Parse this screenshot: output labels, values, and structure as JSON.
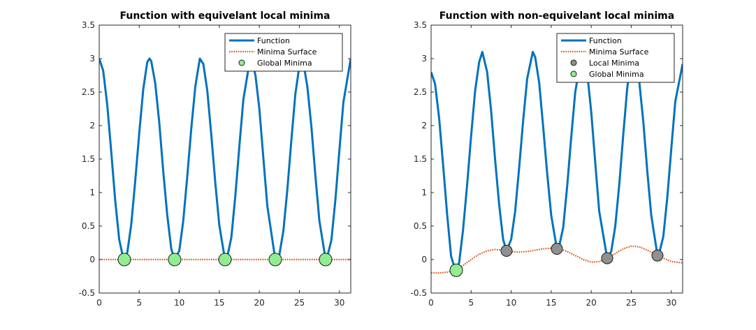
{
  "chart_data": [
    {
      "type": "line",
      "title": "Function with equivelant local minima",
      "xlabel": "",
      "ylabel": "",
      "xlim": [
        0,
        31.4159
      ],
      "ylim": [
        -0.5,
        3.5
      ],
      "xticks": [
        0,
        5,
        10,
        15,
        20,
        25,
        30
      ],
      "yticks": [
        -0.5,
        0,
        0.5,
        1,
        1.5,
        2,
        2.5,
        3,
        3.5
      ],
      "xtick_labels": [
        "0",
        "5",
        "10",
        "15",
        "20",
        "25",
        "30"
      ],
      "ytick_labels": [
        "-0.5",
        "0",
        "0.5",
        "1",
        "1.5",
        "2",
        "2.5",
        "3",
        "3.5"
      ],
      "legend_position": "top-right",
      "series": [
        {
          "name": "Function",
          "kind": "line",
          "color": "#0072BD",
          "x": [
            0,
            0.5,
            1,
            1.5,
            2,
            2.5,
            3,
            3.14,
            3.5,
            4,
            4.5,
            5,
            5.5,
            6,
            6.28,
            6.5,
            7,
            7.5,
            8,
            8.5,
            9,
            9.42,
            10,
            10.5,
            11,
            11.5,
            12,
            12.57,
            13,
            13.5,
            14,
            14.5,
            15,
            15.71,
            16,
            16.5,
            17,
            17.5,
            18,
            18.85,
            19,
            19.5,
            20,
            20.5,
            21,
            21.99,
            22.5,
            23,
            23.5,
            24,
            24.5,
            25.13,
            25.5,
            26,
            26.5,
            27,
            27.5,
            28.27,
            28.5,
            29,
            29.5,
            30,
            30.5,
            31.42
          ],
          "y": [
            3.0,
            2.82,
            2.31,
            1.61,
            0.88,
            0.3,
            0.02,
            0.0,
            0.1,
            0.52,
            1.18,
            1.89,
            2.54,
            2.95,
            3.0,
            2.96,
            2.63,
            2.05,
            1.31,
            0.66,
            0.16,
            0.0,
            0.13,
            0.58,
            1.25,
            1.96,
            2.58,
            3.0,
            2.92,
            2.52,
            1.86,
            1.14,
            0.51,
            0.0,
            0.04,
            0.33,
            0.95,
            1.68,
            2.39,
            3.0,
            2.98,
            2.76,
            2.25,
            1.52,
            0.8,
            0.0,
            0.07,
            0.43,
            1.05,
            1.78,
            2.47,
            3.0,
            2.94,
            2.58,
            1.98,
            1.25,
            0.58,
            0.0,
            0.05,
            0.29,
            0.89,
            1.64,
            2.35,
            3.0
          ]
        },
        {
          "name": "Minima Surface",
          "kind": "dotted-line",
          "color": "#D95319",
          "x": [
            0,
            31.4159
          ],
          "y": [
            0,
            0
          ]
        },
        {
          "name": "Global Minima",
          "kind": "markers",
          "color": "#90EE90",
          "x": [
            3.14,
            9.42,
            15.71,
            21.99,
            28.27
          ],
          "y": [
            0,
            0,
            0,
            0,
            0
          ]
        }
      ]
    },
    {
      "type": "line",
      "title": "Function with non-equivelant local minima",
      "xlabel": "",
      "ylabel": "",
      "xlim": [
        0,
        31.4159
      ],
      "ylim": [
        -0.5,
        3.5
      ],
      "xticks": [
        0,
        5,
        10,
        15,
        20,
        25,
        30
      ],
      "yticks": [
        -0.5,
        0,
        0.5,
        1,
        1.5,
        2,
        2.5,
        3,
        3.5
      ],
      "xtick_labels": [
        "0",
        "5",
        "10",
        "15",
        "20",
        "25",
        "30"
      ],
      "ytick_labels": [
        "-0.5",
        "0",
        "0.5",
        "1",
        "1.5",
        "2",
        "2.5",
        "3",
        "3.5"
      ],
      "legend_position": "top-right",
      "series": [
        {
          "name": "Function",
          "kind": "line",
          "color": "#0072BD",
          "x": [
            0,
            0.5,
            1,
            1.5,
            2,
            2.5,
            3,
            3.14,
            3.5,
            4,
            4.5,
            5,
            5.5,
            6,
            6.4,
            7,
            7.5,
            8,
            8.5,
            9,
            9.42,
            10,
            10.5,
            11,
            11.5,
            12,
            12.7,
            13,
            13.5,
            14,
            14.5,
            15,
            15.71,
            16,
            16.5,
            17,
            17.5,
            18,
            18.85,
            19,
            19.5,
            20,
            20.5,
            21,
            21.99,
            22.5,
            23,
            23.5,
            24,
            24.5,
            25.13,
            25.5,
            26,
            26.5,
            27,
            27.5,
            28.27,
            28.5,
            29,
            29.5,
            30,
            30.5,
            31.42
          ],
          "y": [
            2.8,
            2.62,
            2.11,
            1.41,
            0.68,
            0.05,
            -0.15,
            -0.16,
            -0.05,
            0.45,
            1.12,
            1.85,
            2.52,
            2.95,
            3.1,
            2.8,
            2.22,
            1.48,
            0.82,
            0.3,
            0.13,
            0.3,
            0.72,
            1.38,
            2.08,
            2.7,
            3.1,
            3.02,
            2.64,
            1.98,
            1.28,
            0.66,
            0.16,
            0.2,
            0.48,
            1.1,
            1.82,
            2.5,
            3.1,
            3.05,
            2.78,
            2.2,
            1.45,
            0.72,
            0.02,
            0.12,
            0.5,
            1.12,
            1.86,
            2.56,
            3.1,
            3.02,
            2.66,
            2.06,
            1.32,
            0.66,
            0.06,
            0.1,
            0.34,
            0.92,
            1.66,
            2.36,
            2.92
          ]
        },
        {
          "name": "Minima Surface",
          "kind": "dotted-line",
          "color": "#D95319",
          "x": [
            0,
            1,
            2,
            3,
            4,
            5,
            6,
            7,
            8,
            9,
            10,
            11,
            12,
            13,
            14,
            15,
            16,
            17,
            18,
            19,
            20,
            21,
            22,
            23,
            24,
            25,
            26,
            27,
            28,
            29,
            30,
            31.42
          ],
          "y": [
            -0.2,
            -0.2,
            -0.19,
            -0.16,
            -0.09,
            0.0,
            0.08,
            0.13,
            0.15,
            0.14,
            0.12,
            0.11,
            0.12,
            0.14,
            0.16,
            0.17,
            0.16,
            0.12,
            0.06,
            0.0,
            -0.04,
            -0.03,
            0.02,
            0.09,
            0.16,
            0.2,
            0.19,
            0.14,
            0.08,
            0.02,
            -0.03,
            -0.05
          ]
        },
        {
          "name": "Local Minima",
          "kind": "markers",
          "color": "#909090",
          "x": [
            9.42,
            15.71,
            21.99,
            28.27
          ],
          "y": [
            0.13,
            0.16,
            0.02,
            0.06
          ]
        },
        {
          "name": "Global Minima",
          "kind": "markers",
          "color": "#90EE90",
          "x": [
            3.14
          ],
          "y": [
            -0.16
          ]
        }
      ]
    }
  ]
}
